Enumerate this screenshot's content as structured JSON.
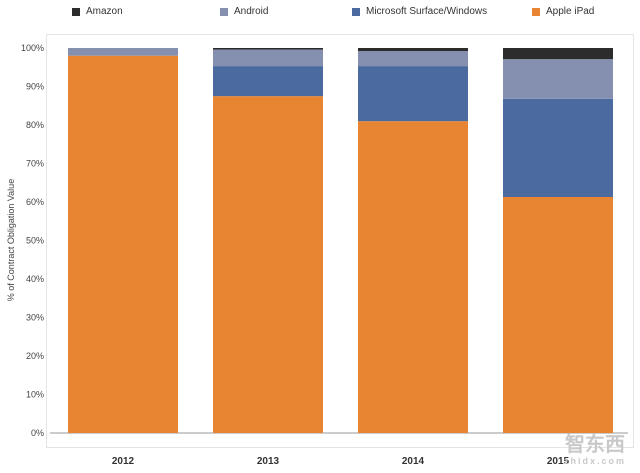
{
  "chart_data": {
    "type": "bar",
    "stacked": true,
    "categories": [
      "2012",
      "2013",
      "2014",
      "2015"
    ],
    "ylabel": "% of Contract Obligation Value",
    "ylim": [
      0,
      100
    ],
    "yticks": [
      "0%",
      "10%",
      "20%",
      "30%",
      "40%",
      "50%",
      "60%",
      "70%",
      "80%",
      "90%",
      "100%"
    ],
    "legend_position": "top",
    "series": [
      {
        "name": "Apple iPad",
        "color": "#e88532",
        "values": [
          98,
          87.5,
          81,
          61.3
        ]
      },
      {
        "name": "Microsoft Surface/Windows",
        "color": "#4a6aa0",
        "values": [
          0,
          7.8,
          14.3,
          25.5
        ]
      },
      {
        "name": "Android",
        "color": "#8590b0",
        "values": [
          2,
          4.3,
          3.9,
          10.3
        ]
      },
      {
        "name": "Amazon",
        "color": "#2c2c2c",
        "values": [
          0,
          0.4,
          0.8,
          2.9
        ]
      }
    ],
    "legend_order": [
      "Amazon",
      "Android",
      "Microsoft Surface/Windows",
      "Apple iPad"
    ]
  },
  "watermark": {
    "text": "智东西",
    "url": "zhidx.com"
  }
}
